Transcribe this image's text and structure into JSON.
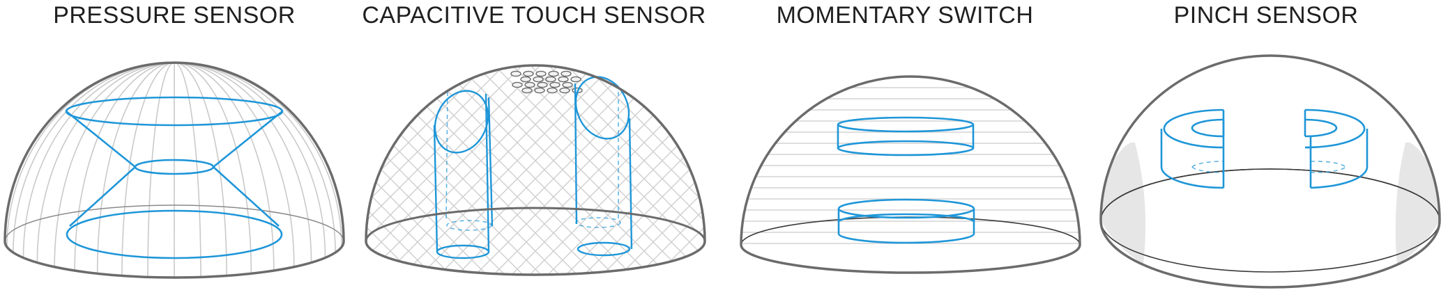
{
  "panels": [
    {
      "title": "PRESSURE SENSOR"
    },
    {
      "title": "CAPACITIVE TOUCH SENSOR"
    },
    {
      "title": "MOMENTARY SWITCH"
    },
    {
      "title": "PINCH SENSOR"
    }
  ],
  "colors": {
    "outline": "#6b6b6b",
    "grid": "#c9c9c9",
    "sensor": "#1e96d8",
    "shade": "#e6e6e6"
  }
}
